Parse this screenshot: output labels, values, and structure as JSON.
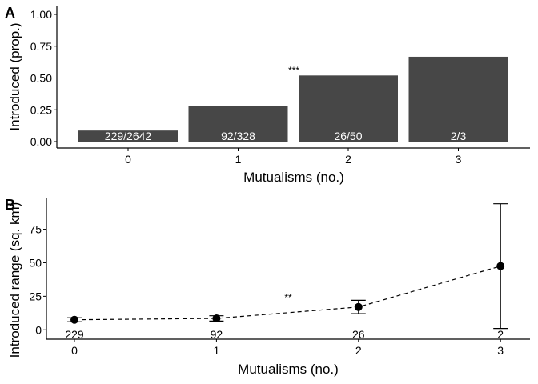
{
  "chart_data": [
    {
      "panel": "A",
      "type": "bar",
      "categories": [
        "0",
        "1",
        "2",
        "3"
      ],
      "values": [
        0.087,
        0.28,
        0.52,
        0.667
      ],
      "bar_labels": [
        "229/2642",
        "92/328",
        "26/50",
        "2/3"
      ],
      "xlabel": "Mutualisms (no.)",
      "ylabel": "Introduced (prop.)",
      "yticks": [
        "0.00",
        "0.25",
        "0.50",
        "0.75",
        "1.00"
      ],
      "ylim": [
        0,
        1.0
      ],
      "significance": "***",
      "bar_color": "#474747"
    },
    {
      "panel": "B",
      "type": "line",
      "x": [
        0,
        1,
        2,
        3
      ],
      "xticks": [
        "0",
        "1",
        "2",
        "3"
      ],
      "y": [
        7.5,
        8.5,
        17,
        47.5
      ],
      "error_low": [
        6,
        6.5,
        12,
        1
      ],
      "error_high": [
        9,
        10.5,
        22,
        94
      ],
      "n_labels": [
        "229",
        "92",
        "26",
        "2"
      ],
      "xlabel": "Mutualisms (no.)",
      "ylabel": "Introduced range (sq. km)",
      "yticks": [
        "0",
        "25",
        "50",
        "75"
      ],
      "ylim": [
        -7,
        98
      ],
      "significance": "**",
      "line_style": "dashed"
    }
  ]
}
